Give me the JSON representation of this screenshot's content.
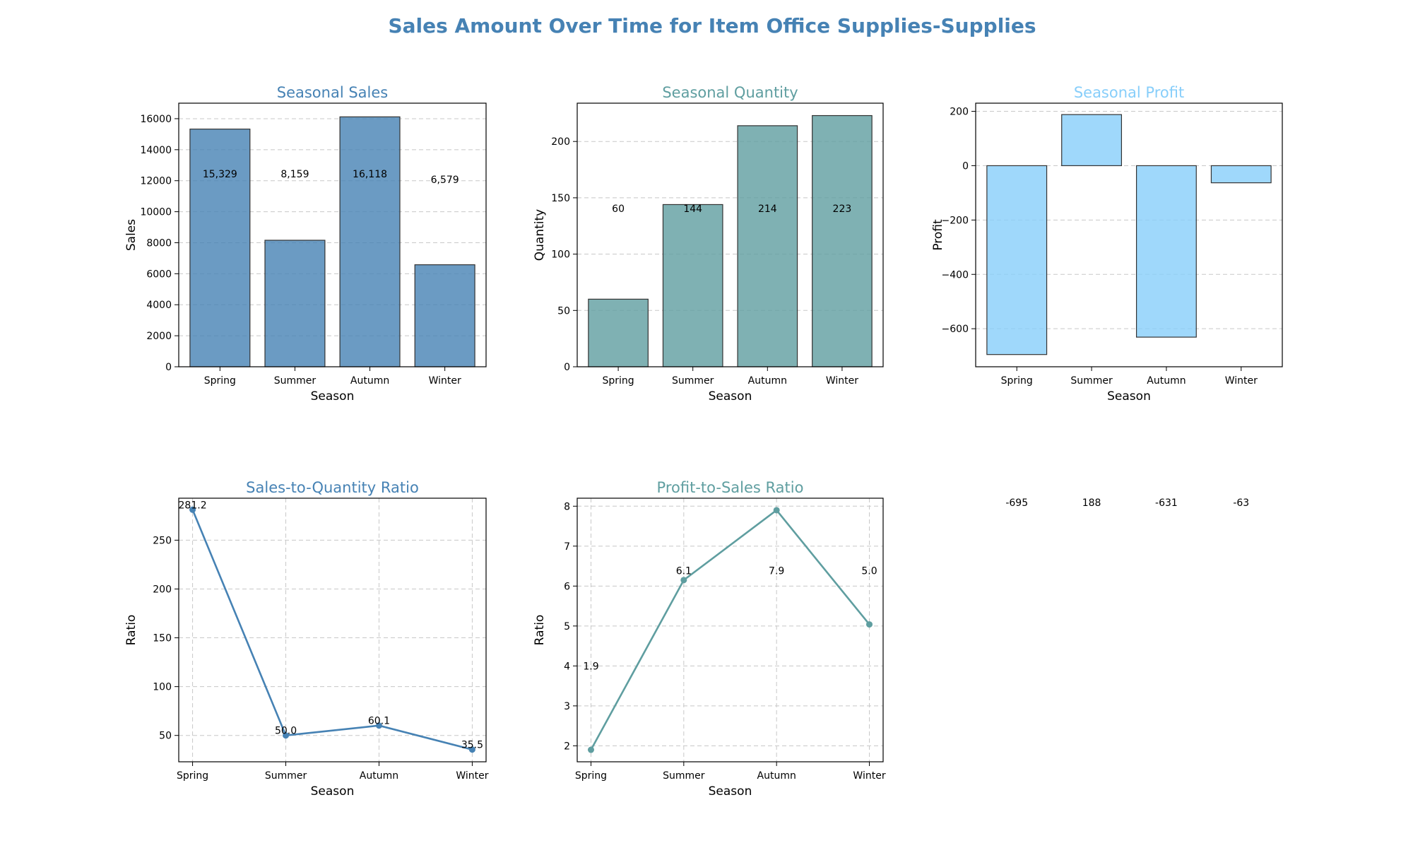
{
  "figure": {
    "title": "Sales Amount Over Time for Item Office Supplies-Supplies"
  },
  "colors": {
    "title": "#4682b4",
    "sales": "#4682b4",
    "quantity": "#5f9ea0",
    "profit": "#87cefa",
    "edge": "#333333",
    "grid": "#c8c8c8",
    "text": "#000000"
  },
  "chart_data": [
    {
      "id": "seasonal-sales",
      "type": "bar",
      "title": "Seasonal Sales",
      "xlabel": "Season",
      "ylabel": "Sales",
      "categories": [
        "Spring",
        "Summer",
        "Autumn",
        "Winter"
      ],
      "values": [
        15329,
        8159,
        16118,
        6579
      ],
      "value_labels": [
        "15,329",
        "8,159",
        "16,118",
        "6,579"
      ],
      "ylim": [
        0,
        17000
      ],
      "yticks": [
        0,
        2000,
        4000,
        6000,
        8000,
        10000,
        12000,
        14000,
        16000
      ],
      "grid": "y"
    },
    {
      "id": "seasonal-quantity",
      "type": "bar",
      "title": "Seasonal Quantity",
      "xlabel": "Season",
      "ylabel": "Quantity",
      "categories": [
        "Spring",
        "Summer",
        "Autumn",
        "Winter"
      ],
      "values": [
        60,
        144,
        214,
        223
      ],
      "value_labels": [
        "60",
        "144",
        "214",
        "223"
      ],
      "ylim": [
        0,
        234
      ],
      "yticks": [
        0,
        50,
        100,
        150,
        200
      ],
      "grid": "y"
    },
    {
      "id": "seasonal-profit",
      "type": "bar",
      "title": "Seasonal Profit",
      "xlabel": "Season",
      "ylabel": "Profit",
      "categories": [
        "Spring",
        "Summer",
        "Autumn",
        "Winter"
      ],
      "values": [
        -695,
        188,
        -631,
        -63
      ],
      "value_labels": [
        "-695",
        "188",
        "-631",
        "-63"
      ],
      "ylim": [
        -740,
        230
      ],
      "yticks": [
        -600,
        -400,
        -200,
        0,
        200
      ],
      "grid": "y"
    },
    {
      "id": "sales-quantity-ratio",
      "type": "line",
      "title": "Sales-to-Quantity Ratio",
      "xlabel": "Season",
      "ylabel": "Ratio",
      "categories": [
        "Spring",
        "Summer",
        "Autumn",
        "Winter"
      ],
      "values": [
        281.2,
        50.0,
        60.1,
        35.5
      ],
      "value_labels": [
        "281.2",
        "50.0",
        "60.1",
        "35.5"
      ],
      "ylim": [
        23,
        293
      ],
      "yticks": [
        50,
        100,
        150,
        200,
        250
      ],
      "grid": "both"
    },
    {
      "id": "profit-sales-ratio",
      "type": "line",
      "title": "Profit-to-Sales Ratio",
      "xlabel": "Season",
      "ylabel": "Ratio",
      "categories": [
        "Spring",
        "Summer",
        "Autumn",
        "Winter"
      ],
      "values": [
        1.9,
        6.15,
        7.9,
        5.04
      ],
      "value_labels": [
        "1.9",
        "6.1",
        "7.9",
        "5.0"
      ],
      "ylim": [
        1.6,
        8.2
      ],
      "yticks": [
        2,
        3,
        4,
        5,
        6,
        7,
        8
      ],
      "grid": "both"
    }
  ]
}
